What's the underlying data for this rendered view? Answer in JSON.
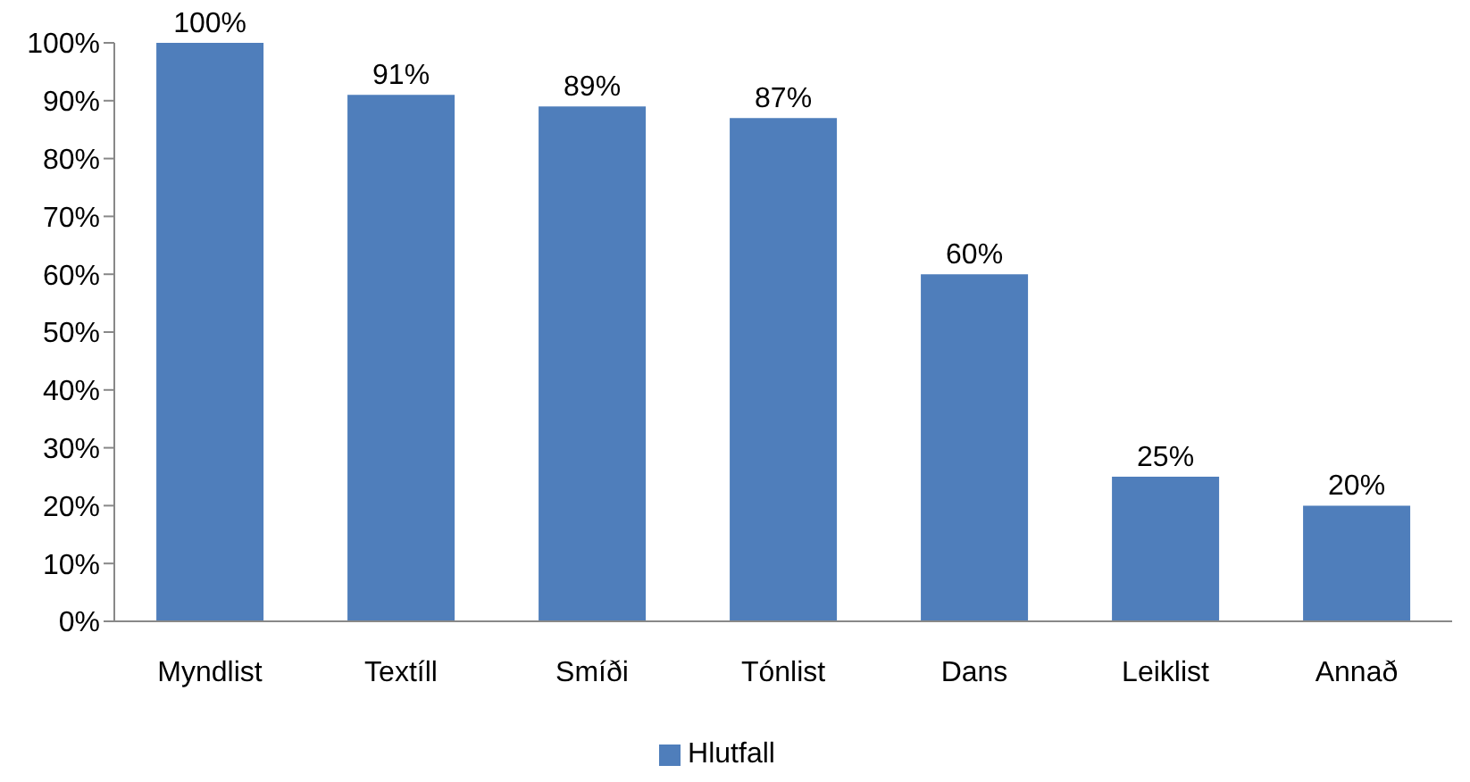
{
  "chart_data": {
    "type": "bar",
    "categories": [
      "Myndlist",
      "Textíll",
      "Smíði",
      "Tónlist",
      "Dans",
      "Leiklist",
      "Annað"
    ],
    "series": [
      {
        "name": "Hlutfall",
        "color": "#4f7ebb",
        "values": [
          100,
          91,
          89,
          87,
          60,
          25,
          20
        ],
        "value_labels": [
          "100%",
          "91%",
          "89%",
          "87%",
          "60%",
          "25%",
          "20%"
        ]
      }
    ],
    "ylim": [
      0,
      100
    ],
    "yticks": [
      {
        "value": 0,
        "label": "0%"
      },
      {
        "value": 10,
        "label": "10%"
      },
      {
        "value": 20,
        "label": "20%"
      },
      {
        "value": 30,
        "label": "30%"
      },
      {
        "value": 40,
        "label": "40%"
      },
      {
        "value": 50,
        "label": "50%"
      },
      {
        "value": 60,
        "label": "60%"
      },
      {
        "value": 70,
        "label": "70%"
      },
      {
        "value": 80,
        "label": "80%"
      },
      {
        "value": 90,
        "label": "90%"
      },
      {
        "value": 100,
        "label": "100%"
      }
    ],
    "grid": false,
    "legend": "bottom"
  }
}
